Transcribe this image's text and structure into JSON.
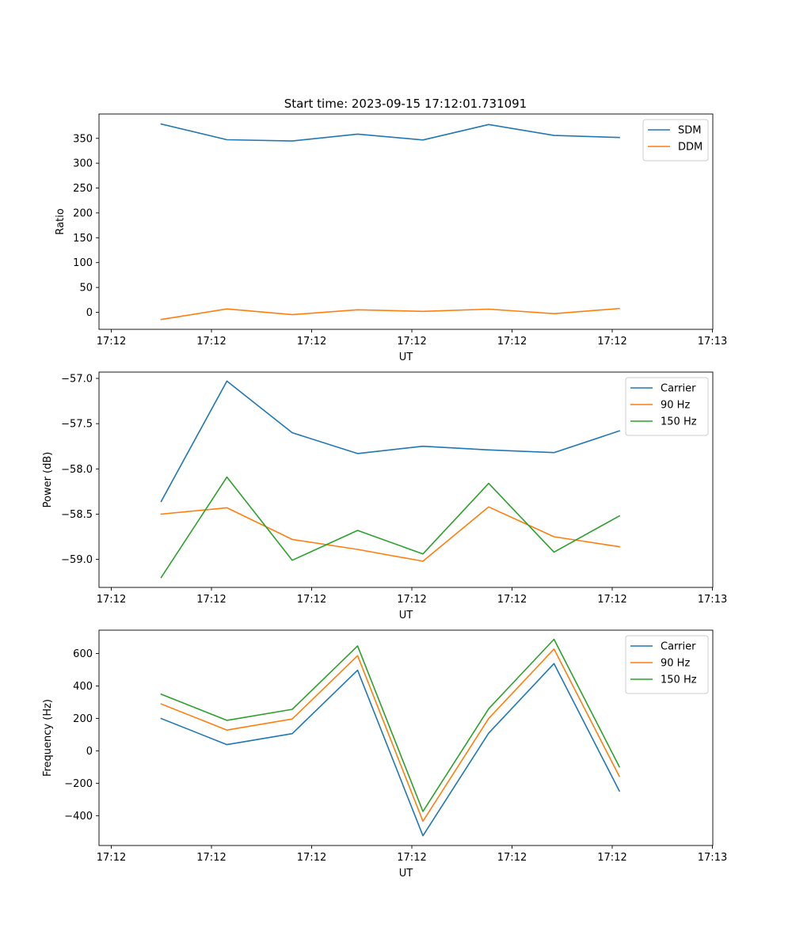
{
  "title": "Start time: 2023-09-15 17:12:01.731091",
  "colors": {
    "blue": "#1f77b4",
    "orange": "#ff7f0e",
    "green": "#2ca02c"
  },
  "chart_data": [
    {
      "type": "line",
      "title": "Start time: 2023-09-15 17:12:01.731091",
      "xlabel": "UT",
      "ylabel": "Ratio",
      "xticks": [
        "17:12",
        "17:12",
        "17:12",
        "17:12",
        "17:12",
        "17:12",
        "17:13"
      ],
      "yticks": [
        0,
        50,
        100,
        150,
        200,
        250,
        300,
        350
      ],
      "ylim": [
        -34.3,
        399
      ],
      "legend_position": "upper right",
      "series": [
        {
          "name": "SDM",
          "color": "#1f77b4",
          "values": [
            379,
            347.3,
            344.7,
            358.5,
            346.7,
            377.8,
            355.8,
            351.7
          ]
        },
        {
          "name": "DDM",
          "color": "#ff7f0e",
          "values": [
            -14.6,
            6.8,
            -4.7,
            5.1,
            1.8,
            6.3,
            -2.7,
            7.6
          ]
        }
      ]
    },
    {
      "type": "line",
      "xlabel": "UT",
      "ylabel": "Power (dB)",
      "xticks": [
        "17:12",
        "17:12",
        "17:12",
        "17:12",
        "17:12",
        "17:12",
        "17:13"
      ],
      "yticks": [
        -57.0,
        -57.5,
        -58.0,
        -58.5,
        -59.0
      ],
      "ytick_labels": [
        "−57.0",
        "−57.5",
        "−58.0",
        "−58.5",
        "−59.0"
      ],
      "ylim": [
        -59.31,
        -56.93
      ],
      "legend_position": "upper right",
      "series": [
        {
          "name": "Carrier",
          "color": "#1f77b4",
          "values": [
            -58.36,
            -57.03,
            -57.6,
            -57.83,
            -57.75,
            -57.79,
            -57.82,
            -57.58
          ]
        },
        {
          "name": "90 Hz",
          "color": "#ff7f0e",
          "values": [
            -58.5,
            -58.43,
            -58.78,
            -58.89,
            -59.02,
            -58.42,
            -58.75,
            -58.86
          ]
        },
        {
          "name": "150 Hz",
          "color": "#2ca02c",
          "values": [
            -59.2,
            -58.09,
            -59.01,
            -58.68,
            -58.94,
            -58.16,
            -58.92,
            -58.52
          ]
        }
      ]
    },
    {
      "type": "line",
      "xlabel": "UT",
      "ylabel": "Frequency (Hz)",
      "xticks": [
        "17:12",
        "17:12",
        "17:12",
        "17:12",
        "17:12",
        "17:12",
        "17:13"
      ],
      "yticks": [
        -400,
        -200,
        0,
        200,
        400,
        600
      ],
      "ytick_labels": [
        "−400",
        "−200",
        "0",
        "200",
        "400",
        "600"
      ],
      "ylim": [
        -584,
        744
      ],
      "legend_position": "upper right",
      "series": [
        {
          "name": "Carrier",
          "color": "#1f77b4",
          "values": [
            199,
            38,
            106,
            497,
            -524,
            109,
            538,
            -248
          ]
        },
        {
          "name": "90 Hz",
          "color": "#ff7f0e",
          "values": [
            289,
            128,
            196,
            587,
            -434,
            199,
            628,
            -158
          ]
        },
        {
          "name": "150 Hz",
          "color": "#2ca02c",
          "values": [
            349,
            188,
            256,
            647,
            -374,
            259,
            688,
            -98
          ]
        }
      ]
    }
  ]
}
